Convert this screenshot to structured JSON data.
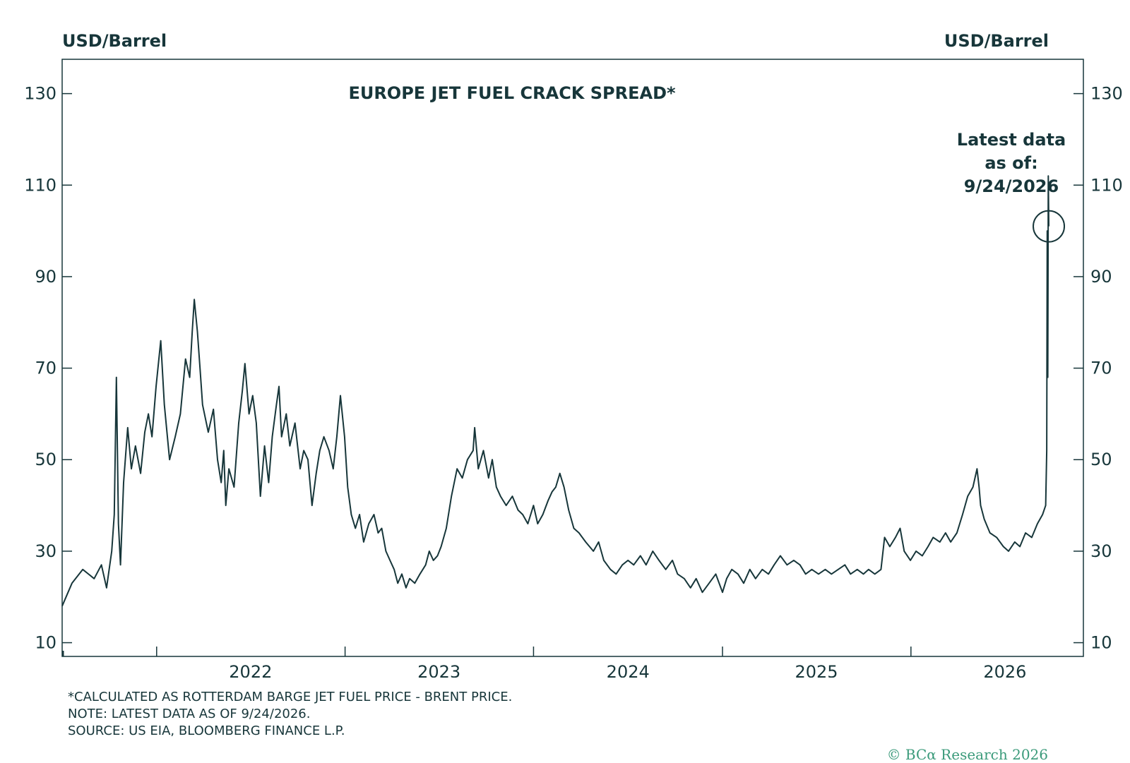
{
  "header": {
    "unit_left": "USD/Barrel",
    "unit_right": "USD/Barrel"
  },
  "footer": {
    "note_1": "*CALCULATED AS ROTTERDAM BARGE JET FUEL PRICE - BRENT PRICE.",
    "note_2": "NOTE: LATEST DATA AS OF 9/24/2026.",
    "note_3": "SOURCE: US EIA, BLOOMBERG FINANCE L.P.",
    "copyright": "© BCα Research 2026"
  },
  "colors": {
    "line": "#17363a",
    "text": "#17363a",
    "copyright": "#3a9a7a"
  },
  "chart_data": {
    "type": "line",
    "title": "EUROPE JET FUEL CRACK SPREAD*",
    "xlabel": "",
    "ylabel": "USD/Barrel",
    "ylim": [
      7,
      137.5
    ],
    "xlim": [
      "2021-07-01",
      "2026-11-30"
    ],
    "y_ticks": [
      10,
      30,
      50,
      70,
      90,
      110,
      130
    ],
    "x_tick_labels": [
      "2022",
      "2023",
      "2024",
      "2025",
      "2026"
    ],
    "x_tick_dates": [
      "2021-12-31",
      "2022-12-31",
      "2023-12-31",
      "2024-12-31",
      "2025-12-31"
    ],
    "grid": false,
    "annotation": {
      "text_lines": [
        "Latest data",
        "as of:",
        "9/24/2026"
      ],
      "date": "2026-09-24",
      "value": 101
    },
    "series": [
      {
        "name": "",
        "points": [
          [
            "2021-07-01",
            18
          ],
          [
            "2021-07-20",
            23
          ],
          [
            "2021-08-10",
            26
          ],
          [
            "2021-09-01",
            24
          ],
          [
            "2021-09-15",
            27
          ],
          [
            "2021-09-25",
            22
          ],
          [
            "2021-10-05",
            30
          ],
          [
            "2021-10-10",
            38
          ],
          [
            "2021-10-14",
            68
          ],
          [
            "2021-10-18",
            36
          ],
          [
            "2021-10-22",
            27
          ],
          [
            "2021-10-28",
            45
          ],
          [
            "2021-11-05",
            57
          ],
          [
            "2021-11-12",
            48
          ],
          [
            "2021-11-20",
            53
          ],
          [
            "2021-11-30",
            47
          ],
          [
            "2021-12-08",
            56
          ],
          [
            "2021-12-15",
            60
          ],
          [
            "2021-12-22",
            55
          ],
          [
            "2021-12-30",
            66
          ],
          [
            "2022-01-08",
            76
          ],
          [
            "2022-01-15",
            62
          ],
          [
            "2022-01-25",
            50
          ],
          [
            "2022-02-05",
            55
          ],
          [
            "2022-02-15",
            60
          ],
          [
            "2022-02-25",
            72
          ],
          [
            "2022-03-05",
            68
          ],
          [
            "2022-03-10",
            78
          ],
          [
            "2022-03-14",
            85
          ],
          [
            "2022-03-20",
            78
          ],
          [
            "2022-03-25",
            70
          ],
          [
            "2022-03-30",
            62
          ],
          [
            "2022-04-10",
            56
          ],
          [
            "2022-04-20",
            61
          ],
          [
            "2022-04-28",
            50
          ],
          [
            "2022-05-05",
            45
          ],
          [
            "2022-05-10",
            52
          ],
          [
            "2022-05-14",
            40
          ],
          [
            "2022-05-20",
            48
          ],
          [
            "2022-05-30",
            44
          ],
          [
            "2022-06-08",
            58
          ],
          [
            "2022-06-15",
            65
          ],
          [
            "2022-06-20",
            71
          ],
          [
            "2022-06-28",
            60
          ],
          [
            "2022-07-05",
            64
          ],
          [
            "2022-07-12",
            58
          ],
          [
            "2022-07-20",
            42
          ],
          [
            "2022-07-28",
            53
          ],
          [
            "2022-08-05",
            45
          ],
          [
            "2022-08-12",
            55
          ],
          [
            "2022-08-20",
            62
          ],
          [
            "2022-08-25",
            66
          ],
          [
            "2022-08-30",
            55
          ],
          [
            "2022-09-08",
            60
          ],
          [
            "2022-09-15",
            53
          ],
          [
            "2022-09-25",
            58
          ],
          [
            "2022-10-05",
            48
          ],
          [
            "2022-10-12",
            52
          ],
          [
            "2022-10-20",
            50
          ],
          [
            "2022-10-28",
            40
          ],
          [
            "2022-11-05",
            47
          ],
          [
            "2022-11-12",
            52
          ],
          [
            "2022-11-20",
            55
          ],
          [
            "2022-11-30",
            52
          ],
          [
            "2022-12-08",
            48
          ],
          [
            "2022-12-15",
            55
          ],
          [
            "2022-12-22",
            64
          ],
          [
            "2022-12-30",
            55
          ],
          [
            "2023-01-05",
            44
          ],
          [
            "2023-01-12",
            38
          ],
          [
            "2023-01-20",
            35
          ],
          [
            "2023-01-28",
            38
          ],
          [
            "2023-02-05",
            32
          ],
          [
            "2023-02-15",
            36
          ],
          [
            "2023-02-25",
            38
          ],
          [
            "2023-03-05",
            34
          ],
          [
            "2023-03-12",
            35
          ],
          [
            "2023-03-20",
            30
          ],
          [
            "2023-03-28",
            28
          ],
          [
            "2023-04-05",
            26
          ],
          [
            "2023-04-12",
            23
          ],
          [
            "2023-04-20",
            25
          ],
          [
            "2023-04-28",
            22
          ],
          [
            "2023-05-05",
            24
          ],
          [
            "2023-05-15",
            23
          ],
          [
            "2023-05-25",
            25
          ],
          [
            "2023-06-05",
            27
          ],
          [
            "2023-06-12",
            30
          ],
          [
            "2023-06-20",
            28
          ],
          [
            "2023-06-28",
            29
          ],
          [
            "2023-07-05",
            31
          ],
          [
            "2023-07-15",
            35
          ],
          [
            "2023-07-25",
            42
          ],
          [
            "2023-08-05",
            48
          ],
          [
            "2023-08-15",
            46
          ],
          [
            "2023-08-25",
            50
          ],
          [
            "2023-09-05",
            52
          ],
          [
            "2023-09-08",
            57
          ],
          [
            "2023-09-15",
            48
          ],
          [
            "2023-09-25",
            52
          ],
          [
            "2023-10-05",
            46
          ],
          [
            "2023-10-12",
            50
          ],
          [
            "2023-10-20",
            44
          ],
          [
            "2023-10-28",
            42
          ],
          [
            "2023-11-08",
            40
          ],
          [
            "2023-11-20",
            42
          ],
          [
            "2023-12-01",
            39
          ],
          [
            "2023-12-10",
            38
          ],
          [
            "2023-12-20",
            36
          ],
          [
            "2023-12-31",
            40
          ],
          [
            "2024-01-08",
            36
          ],
          [
            "2024-01-18",
            38
          ],
          [
            "2024-01-28",
            41
          ],
          [
            "2024-02-05",
            43
          ],
          [
            "2024-02-12",
            44
          ],
          [
            "2024-02-20",
            47
          ],
          [
            "2024-02-28",
            44
          ],
          [
            "2024-03-08",
            39
          ],
          [
            "2024-03-18",
            35
          ],
          [
            "2024-03-28",
            34
          ],
          [
            "2024-04-10",
            32
          ],
          [
            "2024-04-25",
            30
          ],
          [
            "2024-05-05",
            32
          ],
          [
            "2024-05-15",
            28
          ],
          [
            "2024-05-28",
            26
          ],
          [
            "2024-06-08",
            25
          ],
          [
            "2024-06-20",
            27
          ],
          [
            "2024-07-01",
            28
          ],
          [
            "2024-07-12",
            27
          ],
          [
            "2024-07-25",
            29
          ],
          [
            "2024-08-05",
            27
          ],
          [
            "2024-08-18",
            30
          ],
          [
            "2024-08-30",
            28
          ],
          [
            "2024-09-12",
            26
          ],
          [
            "2024-09-25",
            28
          ],
          [
            "2024-10-05",
            25
          ],
          [
            "2024-10-18",
            24
          ],
          [
            "2024-10-30",
            22
          ],
          [
            "2024-11-10",
            24
          ],
          [
            "2024-11-22",
            21
          ],
          [
            "2024-12-05",
            23
          ],
          [
            "2024-12-18",
            25
          ],
          [
            "2024-12-31",
            21
          ],
          [
            "2025-01-08",
            24
          ],
          [
            "2025-01-18",
            26
          ],
          [
            "2025-01-30",
            25
          ],
          [
            "2025-02-10",
            23
          ],
          [
            "2025-02-22",
            26
          ],
          [
            "2025-03-05",
            24
          ],
          [
            "2025-03-18",
            26
          ],
          [
            "2025-03-30",
            25
          ],
          [
            "2025-04-10",
            27
          ],
          [
            "2025-04-22",
            29
          ],
          [
            "2025-05-05",
            27
          ],
          [
            "2025-05-18",
            28
          ],
          [
            "2025-05-30",
            27
          ],
          [
            "2025-06-10",
            25
          ],
          [
            "2025-06-22",
            26
          ],
          [
            "2025-07-05",
            25
          ],
          [
            "2025-07-18",
            26
          ],
          [
            "2025-07-30",
            25
          ],
          [
            "2025-08-12",
            26
          ],
          [
            "2025-08-25",
            27
          ],
          [
            "2025-09-05",
            25
          ],
          [
            "2025-09-18",
            26
          ],
          [
            "2025-09-30",
            25
          ],
          [
            "2025-10-10",
            26
          ],
          [
            "2025-10-22",
            25
          ],
          [
            "2025-11-03",
            26
          ],
          [
            "2025-11-10",
            33
          ],
          [
            "2025-11-20",
            31
          ],
          [
            "2025-12-01",
            33
          ],
          [
            "2025-12-10",
            35
          ],
          [
            "2025-12-18",
            30
          ],
          [
            "2025-12-30",
            28
          ],
          [
            "2026-01-10",
            30
          ],
          [
            "2026-01-22",
            29
          ],
          [
            "2026-02-02",
            31
          ],
          [
            "2026-02-12",
            33
          ],
          [
            "2026-02-25",
            32
          ],
          [
            "2026-03-08",
            34
          ],
          [
            "2026-03-18",
            32
          ],
          [
            "2026-03-30",
            34
          ],
          [
            "2026-04-10",
            38
          ],
          [
            "2026-04-20",
            42
          ],
          [
            "2026-04-30",
            44
          ],
          [
            "2026-05-08",
            48
          ],
          [
            "2026-05-12",
            44
          ],
          [
            "2026-05-15",
            40
          ],
          [
            "2026-05-22",
            37
          ],
          [
            "2026-06-02",
            34
          ],
          [
            "2026-06-15",
            33
          ],
          [
            "2026-06-28",
            31
          ],
          [
            "2026-07-08",
            30
          ],
          [
            "2026-07-20",
            32
          ],
          [
            "2026-07-30",
            31
          ],
          [
            "2026-08-10",
            34
          ],
          [
            "2026-08-22",
            33
          ],
          [
            "2026-09-02",
            36
          ],
          [
            "2026-09-12",
            38
          ],
          [
            "2026-09-18",
            40
          ],
          [
            "2026-09-20",
            52
          ],
          [
            "2026-09-21",
            100
          ],
          [
            "2026-09-22",
            68
          ],
          [
            "2026-09-23",
            112
          ],
          [
            "2026-09-24",
            101
          ]
        ]
      }
    ]
  }
}
